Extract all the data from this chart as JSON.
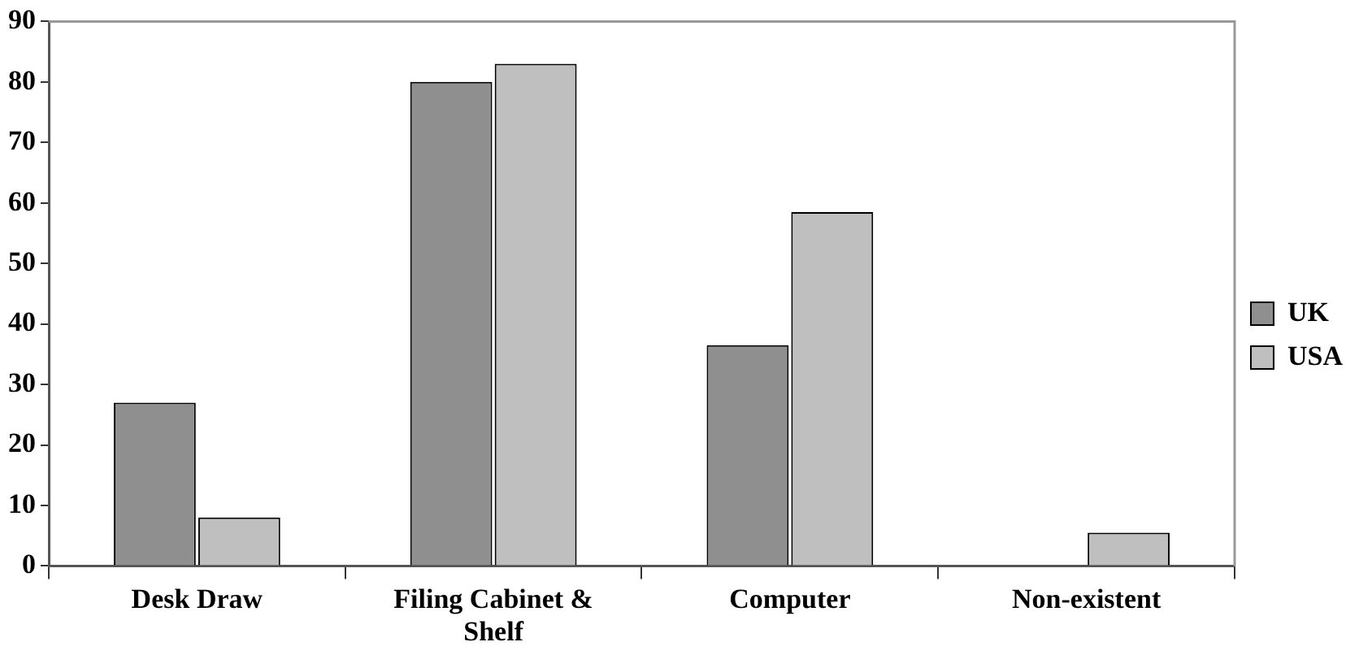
{
  "chart_data": {
    "type": "bar",
    "categories": [
      "Desk Draw",
      "Filing Cabinet & Shelf",
      "Computer",
      "Non-existent"
    ],
    "series": [
      {
        "name": "UK",
        "color": "#8f8f8f",
        "values": [
          27,
          80,
          36.5,
          0
        ]
      },
      {
        "name": "USA",
        "color": "#bfbfbf",
        "values": [
          8,
          83,
          58.5,
          5.5
        ]
      }
    ],
    "ylim": [
      0,
      90
    ],
    "yticks": [
      0,
      10,
      20,
      30,
      40,
      50,
      60,
      70,
      80,
      90
    ],
    "grid": false,
    "legend": "right"
  }
}
